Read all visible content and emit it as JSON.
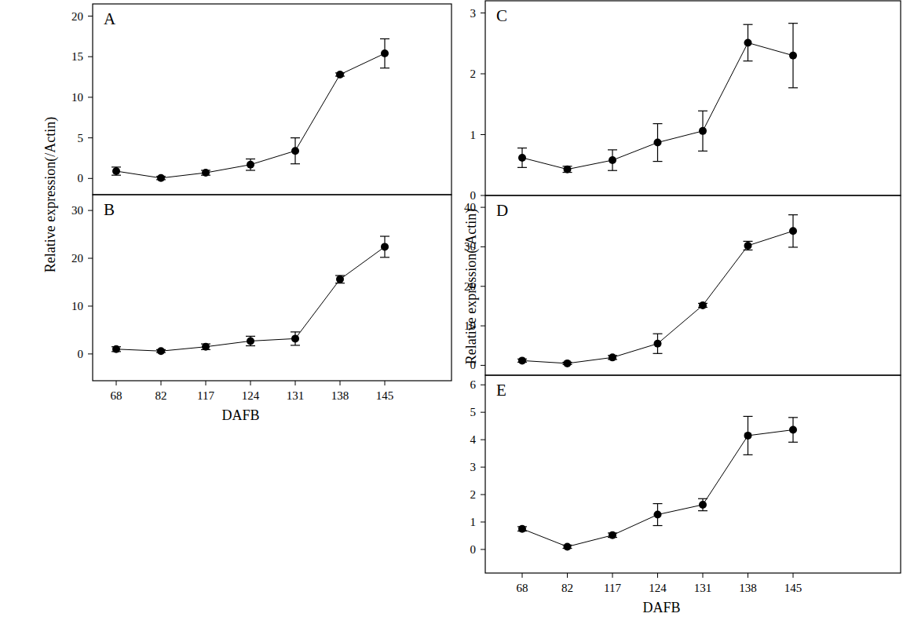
{
  "chart_data": [
    {
      "type": "line",
      "title": "A",
      "categories": [
        "68",
        "82",
        "117",
        "124",
        "131",
        "138",
        "145"
      ],
      "values": [
        0.9,
        0.05,
        0.7,
        1.7,
        3.4,
        12.8,
        15.4
      ],
      "errors": [
        0.5,
        0.2,
        0.3,
        0.7,
        1.6,
        0.2,
        1.8
      ],
      "ylim": [
        -2,
        21.5
      ],
      "yticks": [
        0,
        5,
        10,
        15,
        20
      ],
      "tick_labels": "y",
      "color": "#000000",
      "marker": "circle"
    },
    {
      "type": "line",
      "title": "B",
      "x_label": "DAFB",
      "y_label": "Relative expression(/Actin)",
      "categories": [
        "68",
        "82",
        "117",
        "124",
        "131",
        "138",
        "145"
      ],
      "values": [
        1.0,
        0.6,
        1.5,
        2.7,
        3.2,
        15.6,
        22.4
      ],
      "errors": [
        0.5,
        0.3,
        0.6,
        1.0,
        1.4,
        0.8,
        2.2
      ],
      "ylim": [
        -5.6,
        33.3
      ],
      "yticks": [
        0,
        10,
        20,
        30
      ],
      "color": "#000000",
      "marker": "circle"
    },
    {
      "type": "line",
      "title": "C",
      "categories": [
        "68",
        "82",
        "117",
        "124",
        "131",
        "138",
        "145"
      ],
      "values": [
        0.62,
        0.43,
        0.58,
        0.87,
        1.06,
        2.51,
        2.3
      ],
      "errors": [
        0.16,
        0.05,
        0.17,
        0.31,
        0.33,
        0.3,
        0.53
      ],
      "ylim": [
        0,
        3.2
      ],
      "yticks": [
        0,
        1,
        2,
        3
      ],
      "tick_labels": "y",
      "color": "#000000",
      "marker": "circle"
    },
    {
      "type": "line",
      "title": "D",
      "y_label": "Relative expression(/Actin)",
      "categories": [
        "68",
        "82",
        "117",
        "124",
        "131",
        "138",
        "145"
      ],
      "values": [
        1.2,
        0.5,
        2.0,
        5.5,
        15.2,
        30.3,
        34.0
      ],
      "errors": [
        0.4,
        0.3,
        0.5,
        2.5,
        0.5,
        1.1,
        4.1
      ],
      "ylim": [
        -2.5,
        43
      ],
      "yticks": [
        0,
        10,
        20,
        30,
        40
      ],
      "tick_labels": "y",
      "color": "#000000",
      "marker": "circle"
    },
    {
      "type": "line",
      "title": "E",
      "x_label": "DAFB",
      "categories": [
        "68",
        "82",
        "117",
        "124",
        "131",
        "138",
        "145"
      ],
      "values": [
        0.75,
        0.1,
        0.52,
        1.27,
        1.63,
        4.15,
        4.36
      ],
      "errors": [
        0.08,
        0.06,
        0.08,
        0.4,
        0.22,
        0.7,
        0.45
      ],
      "ylim": [
        -0.86,
        6.35
      ],
      "yticks": [
        0,
        1,
        2,
        3,
        4,
        5,
        6
      ],
      "color": "#000000",
      "marker": "circle"
    }
  ]
}
